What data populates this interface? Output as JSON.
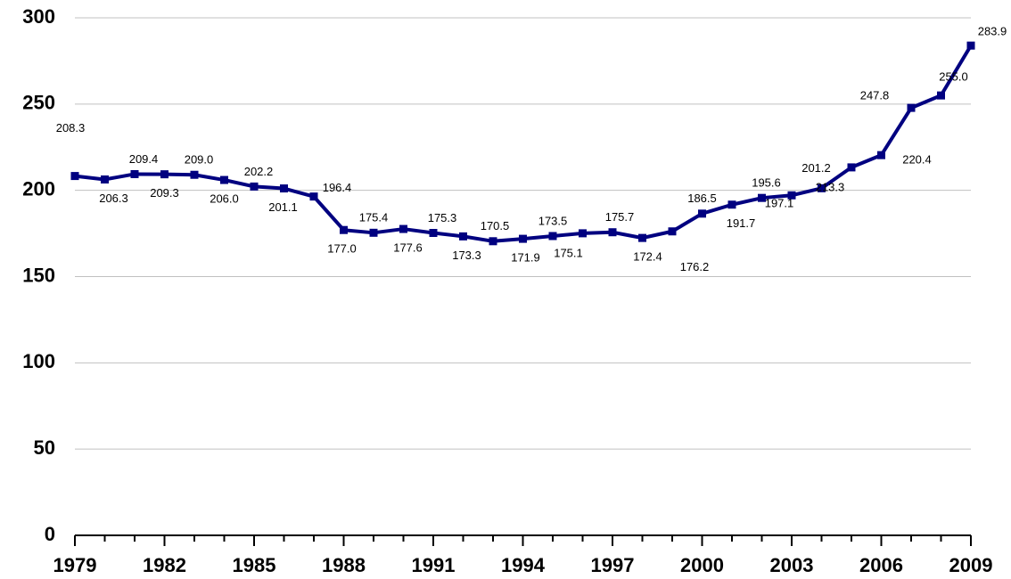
{
  "chart_data": {
    "type": "line",
    "x": [
      1979,
      1980,
      1981,
      1982,
      1983,
      1984,
      1985,
      1986,
      1987,
      1988,
      1989,
      1990,
      1991,
      1992,
      1993,
      1994,
      1995,
      1996,
      1997,
      1998,
      1999,
      2000,
      2001,
      2002,
      2003,
      2004,
      2005,
      2006,
      2007,
      2008,
      2009
    ],
    "series": [
      {
        "color": "#000080",
        "values": [
          208.3,
          206.3,
          209.4,
          209.3,
          209.0,
          206.0,
          202.2,
          201.1,
          196.4,
          177.0,
          175.4,
          177.6,
          175.3,
          173.3,
          170.5,
          171.9,
          173.5,
          175.1,
          175.7,
          172.4,
          176.2,
          186.5,
          191.7,
          195.6,
          197.1,
          201.2,
          213.3,
          220.4,
          247.8,
          255.0,
          283.9
        ],
        "value_labels": [
          "208.3",
          "206.3",
          "209.4",
          "209.3",
          "209.0",
          "206.0",
          "202.2",
          "201.1",
          "196.4",
          "177.0",
          "175.4",
          "177.6",
          "175.3",
          "173.3",
          "170.5",
          "171.9",
          "173.5",
          "175.1",
          "175.7",
          "172.4",
          "176.2",
          "186.5",
          "191.7",
          "195.6",
          "197.1",
          "201.2",
          "213.3",
          "220.4",
          "247.8",
          "255.0",
          "283.9"
        ]
      }
    ],
    "xlim": [
      1979,
      2009
    ],
    "xticks": [
      1979,
      1982,
      1985,
      1988,
      1991,
      1994,
      1997,
      2000,
      2003,
      2006,
      2009
    ],
    "ylim": [
      0,
      300
    ],
    "yticks": [
      0,
      50,
      100,
      150,
      200,
      250,
      300
    ],
    "grid": true
  }
}
